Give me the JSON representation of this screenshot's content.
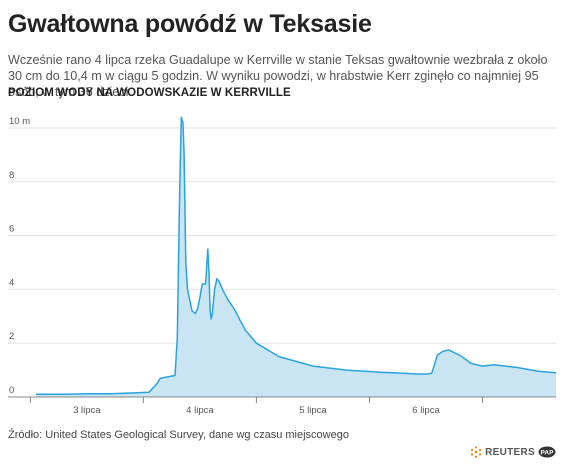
{
  "title": "Gwałtowna powódź w Teksasie",
  "description": "Wcześnie rano 4 lipca rzeka Guadalupe w Kerrville w stanie Teksas gwałtownie wezbrała z około 30 cm do 10,4 m w ciągu 5 godzin. W wyniku powodzi, w hrabstwie Kerr zginęło co najmniej 95 osób, w tym 36 dzieci.",
  "source": "Źródło: United States Geological Survey, dane wg czasu miejscowego",
  "credits": {
    "reuters": "REUTERS",
    "pap": "PAP"
  },
  "colors": {
    "area_fill": "#c9e5f3",
    "line": "#2aa3dd",
    "grid": "#e3e3e3",
    "axis": "#888888"
  },
  "chart_data": {
    "type": "area",
    "title": "POZIOM WODY NA WODOWSKAZIE W KERRVILLE",
    "xlabel": "",
    "ylabel": "",
    "y_unit_label": "m",
    "ylim": [
      0,
      10
    ],
    "yticks": [
      0,
      2,
      4,
      6,
      8,
      10
    ],
    "xlim": [
      2.55,
      7.15
    ],
    "x_tick_labels": [
      {
        "x": 3.0,
        "label": "3 lipca"
      },
      {
        "x": 4.0,
        "label": "4 lipca"
      },
      {
        "x": 5.0,
        "label": "5 lipca"
      },
      {
        "x": 6.0,
        "label": "6 lipca"
      }
    ],
    "x_day_boundaries": [
      2.5,
      3.5,
      4.5,
      5.5,
      6.5
    ],
    "grid": true,
    "series": [
      {
        "x": [
          2.55,
          2.8,
          3.0,
          3.2,
          3.4,
          3.55,
          3.62,
          3.65,
          3.72,
          3.78,
          3.8,
          3.82,
          3.835,
          3.85,
          3.86,
          3.875,
          3.89,
          3.93,
          3.96,
          3.98,
          4.0,
          4.02,
          4.05,
          4.07,
          4.08,
          4.09,
          4.1,
          4.11,
          4.13,
          4.15,
          4.17,
          4.2,
          4.25,
          4.3,
          4.4,
          4.5,
          4.7,
          5.0,
          5.3,
          5.6,
          5.8,
          5.95,
          6.0,
          6.05,
          6.1,
          6.15,
          6.2,
          6.3,
          6.4,
          6.5,
          6.6,
          6.8,
          7.0,
          7.15
        ],
        "y": [
          0.1,
          0.1,
          0.12,
          0.12,
          0.15,
          0.18,
          0.5,
          0.7,
          0.75,
          0.8,
          2.2,
          7.5,
          10.4,
          10.2,
          9.0,
          5.0,
          4.0,
          3.2,
          3.1,
          3.3,
          3.7,
          4.2,
          4.2,
          5.5,
          4.6,
          3.2,
          2.9,
          3.1,
          4.0,
          4.4,
          4.3,
          4.0,
          3.6,
          3.3,
          2.5,
          2.0,
          1.5,
          1.15,
          1.0,
          0.92,
          0.88,
          0.85,
          0.85,
          0.88,
          1.55,
          1.7,
          1.75,
          1.55,
          1.25,
          1.15,
          1.2,
          1.1,
          0.95,
          0.9
        ]
      }
    ]
  }
}
